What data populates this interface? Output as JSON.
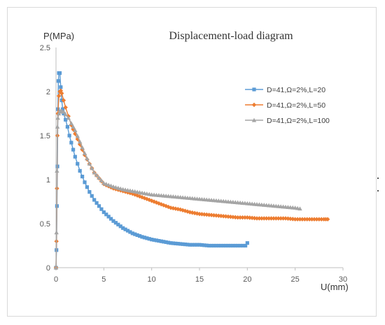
{
  "chart_data": {
    "type": "line",
    "title": "Displacement-load diagram",
    "xlabel": "U(mm)",
    "ylabel": "P(MPa)",
    "xlim": [
      0,
      30
    ],
    "ylim": [
      0,
      2.5
    ],
    "xticks": [
      "0",
      "5",
      "10",
      "15",
      "20",
      "25",
      "30"
    ],
    "yticks": [
      "0",
      "0.5",
      "1",
      "1.5",
      "2",
      "2.5"
    ],
    "grid": false,
    "legend_position": "right",
    "series": [
      {
        "name": "D=41,Ω=2%,L=20",
        "color": "#5B9BD5",
        "marker": "square",
        "x": [
          0,
          0.05,
          0.1,
          0.15,
          0.2,
          0.25,
          0.3,
          0.4,
          0.5,
          0.6,
          0.7,
          0.8,
          1,
          1.2,
          1.4,
          1.6,
          1.8,
          2,
          2.25,
          2.5,
          3,
          3.5,
          4,
          5,
          6,
          7,
          8,
          9,
          10,
          11,
          12,
          13,
          14,
          15,
          16,
          17,
          18,
          19,
          19.8,
          20
        ],
        "y": [
          0,
          0.2,
          0.7,
          1.15,
          1.8,
          2.12,
          2.21,
          2.21,
          2.05,
          1.9,
          1.8,
          1.75,
          1.68,
          1.6,
          1.5,
          1.42,
          1.34,
          1.26,
          1.18,
          1.1,
          0.97,
          0.86,
          0.77,
          0.63,
          0.53,
          0.45,
          0.39,
          0.35,
          0.32,
          0.3,
          0.28,
          0.27,
          0.26,
          0.26,
          0.25,
          0.25,
          0.25,
          0.25,
          0.25,
          0.28
        ]
      },
      {
        "name": "D=41,Ω=2%,L=50",
        "color": "#ED7D31",
        "marker": "diamond",
        "x": [
          0,
          0.05,
          0.1,
          0.15,
          0.2,
          0.3,
          0.4,
          0.5,
          0.6,
          0.8,
          1,
          1.3,
          1.6,
          2,
          2.5,
          3,
          3.5,
          4,
          5,
          6,
          7,
          8,
          9,
          10,
          11,
          12,
          13,
          14,
          15,
          16,
          17,
          18,
          19,
          20,
          21,
          22,
          23,
          24,
          25,
          26,
          27,
          28,
          28.4
        ],
        "y": [
          0,
          0.3,
          0.9,
          1.5,
          1.75,
          1.95,
          2.0,
          2.01,
          1.98,
          1.9,
          1.82,
          1.72,
          1.62,
          1.52,
          1.4,
          1.28,
          1.18,
          1.08,
          0.95,
          0.9,
          0.87,
          0.84,
          0.8,
          0.76,
          0.72,
          0.68,
          0.66,
          0.63,
          0.61,
          0.6,
          0.59,
          0.58,
          0.57,
          0.57,
          0.56,
          0.56,
          0.56,
          0.56,
          0.55,
          0.55,
          0.55,
          0.55,
          0.55
        ]
      },
      {
        "name": "D=41,Ω=2%,L=100",
        "color": "#A5A5A5",
        "marker": "triangle",
        "x": [
          0,
          0.05,
          0.1,
          0.15,
          0.2,
          0.3,
          0.4,
          0.5,
          0.6,
          0.8,
          1,
          1.3,
          1.6,
          2,
          2.5,
          3,
          3.5,
          4,
          5,
          6,
          7,
          8,
          9,
          10,
          11,
          12,
          13,
          14,
          15,
          16,
          17,
          18,
          19,
          20,
          21,
          22,
          23,
          24,
          25,
          25.5
        ],
        "y": [
          0,
          0.4,
          1.1,
          1.6,
          1.7,
          1.75,
          1.77,
          1.78,
          1.78,
          1.77,
          1.74,
          1.7,
          1.64,
          1.56,
          1.43,
          1.3,
          1.18,
          1.08,
          0.96,
          0.92,
          0.89,
          0.87,
          0.85,
          0.83,
          0.82,
          0.81,
          0.8,
          0.79,
          0.78,
          0.77,
          0.76,
          0.75,
          0.74,
          0.73,
          0.72,
          0.71,
          0.7,
          0.69,
          0.68,
          0.67
        ]
      }
    ]
  }
}
